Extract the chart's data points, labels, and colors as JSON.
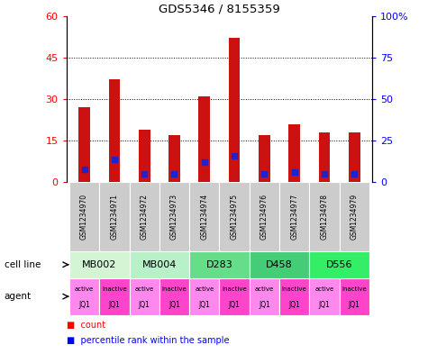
{
  "title": "GDS5346 / 8155359",
  "samples": [
    "GSM1234970",
    "GSM1234971",
    "GSM1234972",
    "GSM1234973",
    "GSM1234974",
    "GSM1234975",
    "GSM1234976",
    "GSM1234977",
    "GSM1234978",
    "GSM1234979"
  ],
  "counts": [
    27,
    37,
    19,
    17,
    31,
    52,
    17,
    21,
    18,
    18
  ],
  "percentile_ranks": [
    8,
    14,
    5,
    5,
    12,
    16,
    5,
    6,
    5,
    5
  ],
  "cell_lines": [
    {
      "label": "MB002",
      "start": 0,
      "end": 2
    },
    {
      "label": "MB004",
      "start": 2,
      "end": 4
    },
    {
      "label": "D283",
      "start": 4,
      "end": 6
    },
    {
      "label": "D458",
      "start": 6,
      "end": 8
    },
    {
      "label": "D556",
      "start": 8,
      "end": 10
    }
  ],
  "cell_line_colors": [
    "#d4f5d4",
    "#b8f0c8",
    "#66dd88",
    "#44cc77",
    "#33ee66"
  ],
  "agents": [
    "active",
    "inactive",
    "active",
    "inactive",
    "active",
    "inactive",
    "active",
    "inactive",
    "active",
    "inactive"
  ],
  "agent_row2": [
    "JQ1",
    "JQ1",
    "JQ1",
    "JQ1",
    "JQ1",
    "JQ1",
    "JQ1",
    "JQ1",
    "JQ1",
    "JQ1"
  ],
  "agent_color_active": "#ff88ee",
  "agent_color_inactive": "#ff44cc",
  "bar_color": "#cc1111",
  "dot_color": "#2222cc",
  "sample_box_color": "#cccccc",
  "ylim_left": [
    0,
    60
  ],
  "ylim_right": [
    0,
    100
  ],
  "yticks_left": [
    0,
    15,
    30,
    45,
    60
  ],
  "yticks_right": [
    0,
    25,
    50,
    75,
    100
  ]
}
